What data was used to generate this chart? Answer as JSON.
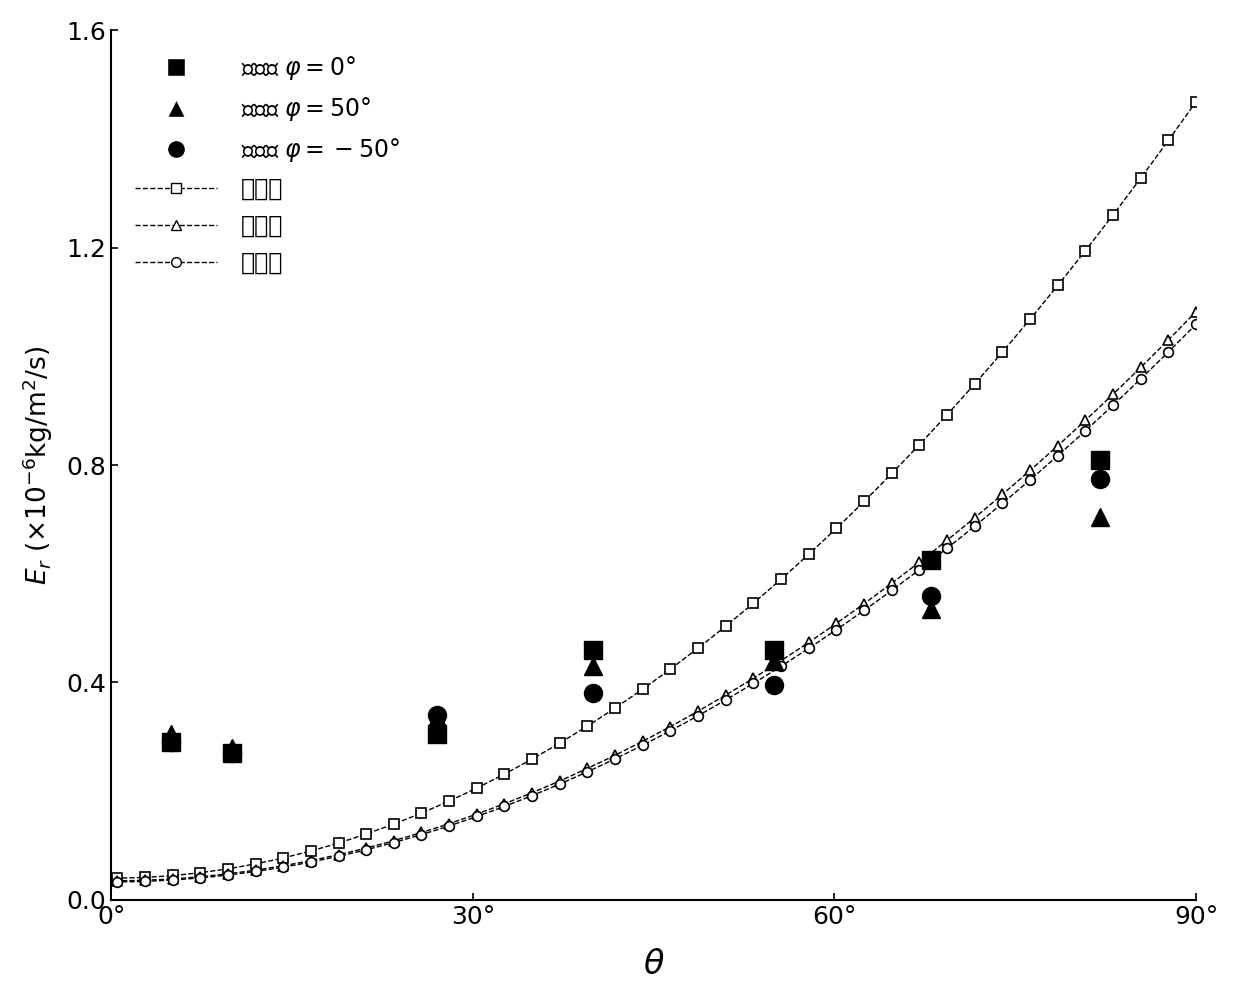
{
  "xlabel": "$\\theta$",
  "ylabel": "$E_r$ ($\\times10^{-6}$kg/m$^2$/s)",
  "xlim": [
    0,
    90
  ],
  "ylim": [
    0.0,
    1.6
  ],
  "xticks": [
    0,
    30,
    60,
    90
  ],
  "xtick_labels": [
    "0°",
    "30°",
    "60°",
    "90°"
  ],
  "yticks": [
    0.0,
    0.4,
    0.8,
    1.2,
    1.6
  ],
  "ytick_labels": [
    "0.0",
    "0.4",
    "0.8",
    "1.2",
    "1.6"
  ],
  "measured_phi0_x": [
    5,
    10,
    27,
    40,
    55,
    68,
    82
  ],
  "measured_phi0_y": [
    0.29,
    0.27,
    0.305,
    0.46,
    0.46,
    0.625,
    0.81
  ],
  "measured_phi50_x": [
    5,
    10,
    27,
    40,
    55,
    68,
    82
  ],
  "measured_phi50_y": [
    0.305,
    0.28,
    0.335,
    0.43,
    0.44,
    0.535,
    0.705
  ],
  "measured_phim50_x": [
    5,
    10,
    27,
    40,
    55,
    68,
    82
  ],
  "measured_phim50_y": [
    0.29,
    0.27,
    0.34,
    0.38,
    0.395,
    0.56,
    0.775
  ],
  "pred_phi0_a": 0.04,
  "pred_phi0_b": 0.000193,
  "pred_phi0_n": 1.98,
  "pred_phi50_a": 0.035,
  "pred_phi50_b": 0.000148,
  "pred_phi50_n": 1.97,
  "pred_phim50_a": 0.033,
  "pred_phim50_b": 0.000145,
  "pred_phim50_n": 1.97,
  "n_pred": 200,
  "n_sparse": 40,
  "lw": 1.0,
  "ms_measured": 13,
  "ms_predicted": 7,
  "tick_fontsize": 18,
  "ylabel_fontsize": 19,
  "xlabel_fontsize": 24,
  "legend_fontsize": 17,
  "figsize": [
    12.39,
    10.02
  ],
  "dpi": 100,
  "legend_labels_measured": [
    "测量值 $\\varphi = 0°$",
    "测量值 $\\varphi = 50°$",
    "测量值 $\\varphi = -50°$"
  ],
  "legend_labels_predicted": [
    "预测值",
    "预测值",
    "预测值"
  ]
}
